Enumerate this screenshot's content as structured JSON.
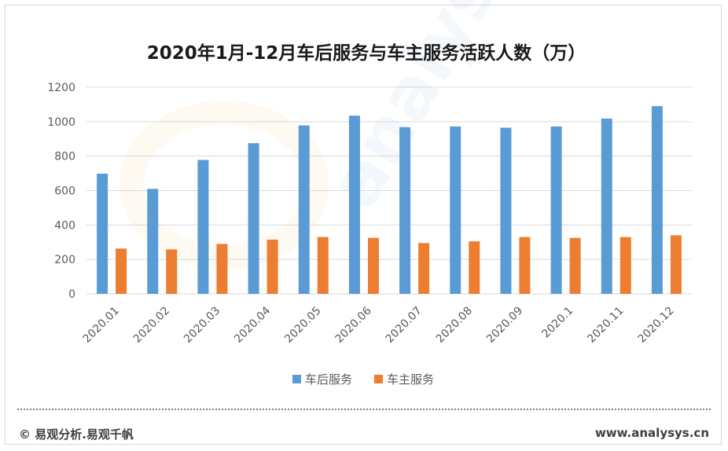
{
  "chart_data": {
    "type": "bar",
    "title": "2020年1月-12月车后服务与车主服务活跃人数（万）",
    "categories": [
      "2020.01",
      "2020.02",
      "2020.03",
      "2020.04",
      "2020.05",
      "2020.06",
      "2020.07",
      "2020.08",
      "2020.09",
      "2020.1",
      "2020.11",
      "2020.12"
    ],
    "series": [
      {
        "name": "车后服务",
        "color": "#5b9bd5",
        "values": [
          698,
          610,
          778,
          875,
          978,
          1035,
          968,
          972,
          965,
          972,
          1018,
          1090
        ]
      },
      {
        "name": "车主服务",
        "color": "#ed7d31",
        "values": [
          263,
          258,
          290,
          315,
          330,
          325,
          295,
          305,
          330,
          325,
          330,
          340
        ]
      }
    ],
    "ylim": [
      0,
      1200
    ],
    "yticks": [
      0,
      200,
      400,
      600,
      800,
      1000,
      1200
    ],
    "grid": true,
    "legend": "bottom"
  },
  "footer": {
    "source": "© 易观分析.易观千帆",
    "site": "www.analysys.cn"
  }
}
